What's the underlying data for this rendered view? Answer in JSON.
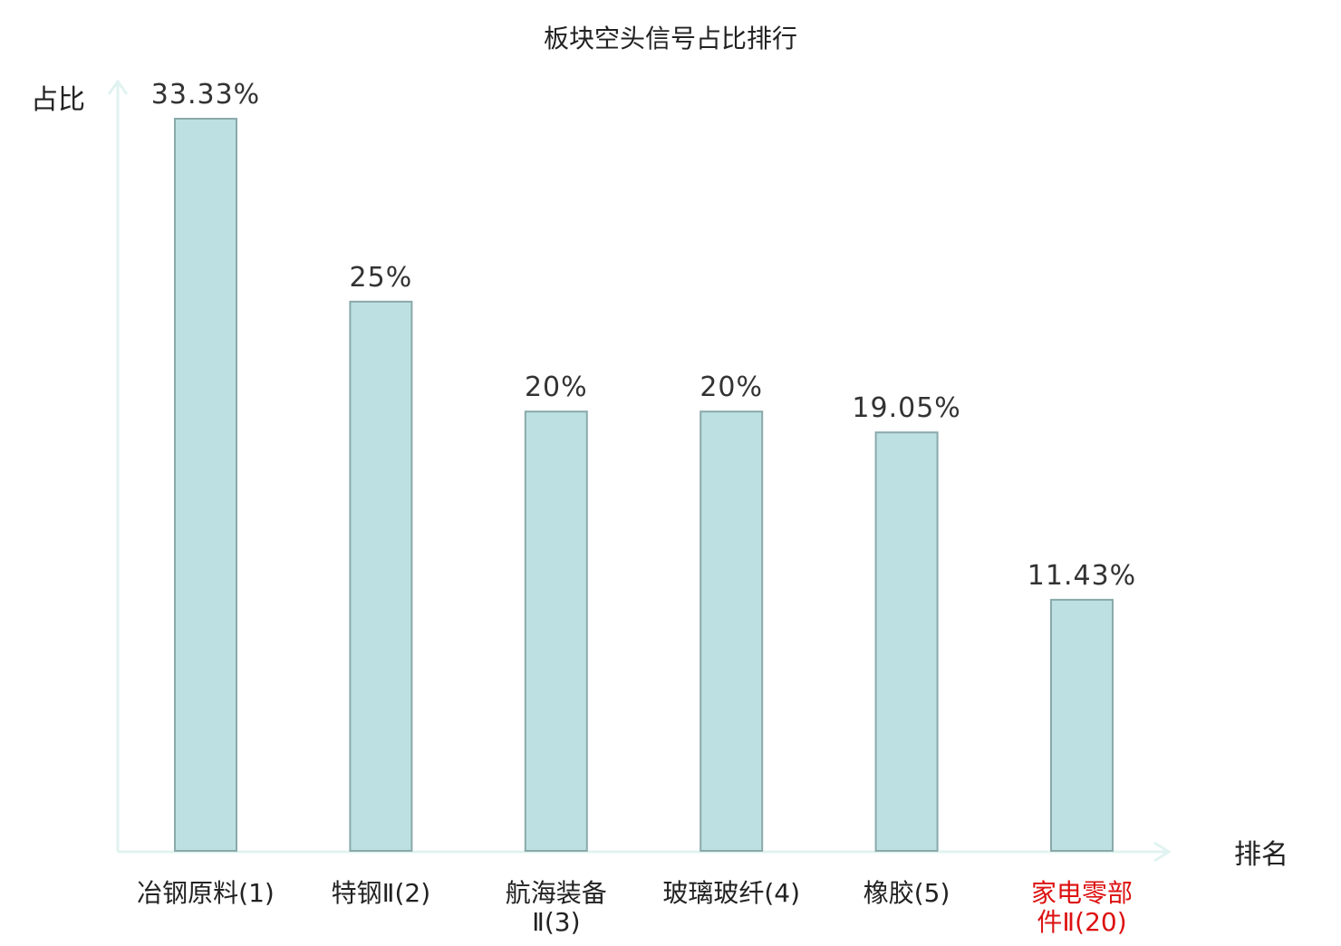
{
  "chart_data": {
    "type": "bar",
    "title": "板块空头信号占比排行",
    "ylabel": "占比",
    "xlabel": "排名",
    "categories": [
      [
        "冶钢原料(1)"
      ],
      [
        "特钢Ⅱ(2)"
      ],
      [
        "航海装备",
        "Ⅱ(3)"
      ],
      [
        "玻璃玻纤(4)"
      ],
      [
        "橡胶(5)"
      ],
      [
        "家电零部",
        "件Ⅱ(20)"
      ]
    ],
    "values": [
      33.33,
      25,
      20,
      20,
      19.05,
      11.43
    ],
    "value_labels": [
      "33.33%",
      "25%",
      "20%",
      "20%",
      "19.05%",
      "11.43%"
    ],
    "highlight_index": 5,
    "ylim": [
      0,
      33.33
    ],
    "grid": false,
    "legend": "none"
  },
  "colors": {
    "bar_fill": "#bde0e2",
    "bar_stroke": "#8aa9ab",
    "axis": "#e0f3f0",
    "text": "#333333",
    "label_text": "#222222",
    "highlight_text": "#dd1111"
  }
}
